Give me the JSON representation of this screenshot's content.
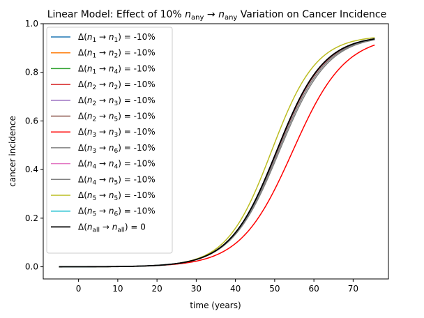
{
  "chart_data": {
    "type": "line",
    "title": {
      "prefix": "Linear Model: Effect of 10% ",
      "sym1": "n",
      "sub1": "any",
      "arrow": "→",
      "sym2": "n",
      "sub2": "any",
      "suffix": " Variation on Cancer Incidence"
    },
    "xlabel": "time (years)",
    "ylabel": "cancer incidence",
    "xlim": [
      -9,
      79
    ],
    "ylim": [
      -0.05,
      1.0
    ],
    "xticks": [
      0,
      10,
      20,
      30,
      40,
      50,
      60,
      70
    ],
    "yticks": [
      0.0,
      0.2,
      0.4,
      0.6,
      0.8,
      1.0
    ],
    "ytick_labels": [
      "0.0",
      "0.2",
      "0.4",
      "0.6",
      "0.8",
      "1.0"
    ],
    "legend_position": "upper-left",
    "series": [
      {
        "label": {
          "a": "1",
          "b": "1",
          "suffix": " = -10%"
        },
        "color": "#1f77b4",
        "x50": 50.6,
        "k": 0.166,
        "width": 1.5
      },
      {
        "label": {
          "a": "1",
          "b": "2",
          "suffix": " = -10%"
        },
        "color": "#ff7f0e",
        "x50": 50.5,
        "k": 0.167,
        "width": 1.5
      },
      {
        "label": {
          "a": "1",
          "b": "4",
          "suffix": " = -10%"
        },
        "color": "#2ca02c",
        "x50": 50.5,
        "k": 0.167,
        "width": 1.5
      },
      {
        "label": {
          "a": "2",
          "b": "2",
          "suffix": " = -10%"
        },
        "color": "#d62728",
        "x50": 50.6,
        "k": 0.166,
        "width": 1.5
      },
      {
        "label": {
          "a": "2",
          "b": "3",
          "suffix": " = -10%"
        },
        "color": "#9467bd",
        "x50": 50.5,
        "k": 0.167,
        "width": 1.5
      },
      {
        "label": {
          "a": "2",
          "b": "5",
          "suffix": " = -10%"
        },
        "color": "#8c564b",
        "x50": 50.5,
        "k": 0.167,
        "width": 1.5
      },
      {
        "label": {
          "a": "3",
          "b": "3",
          "suffix": " = -10%"
        },
        "color": "#ff0000",
        "x50": 54.6,
        "k": 0.15,
        "width": 1.5
      },
      {
        "label": {
          "a": "3",
          "b": "6",
          "suffix": " = -10%"
        },
        "color": "#7f7f7f",
        "x50": 51.2,
        "k": 0.162,
        "width": 1.5
      },
      {
        "label": {
          "a": "4",
          "b": "4",
          "suffix": " = -10%"
        },
        "color": "#e377c2",
        "x50": 50.5,
        "k": 0.167,
        "width": 1.5
      },
      {
        "label": {
          "a": "4",
          "b": "5",
          "suffix": " = -10%"
        },
        "color": "#808080",
        "x50": 50.9,
        "k": 0.164,
        "width": 1.5
      },
      {
        "label": {
          "a": "5",
          "b": "5",
          "suffix": " = -10%"
        },
        "color": "#bcbd22",
        "x50": 49.2,
        "k": 0.175,
        "width": 1.5
      },
      {
        "label": {
          "a": "5",
          "b": "6",
          "suffix": " = -10%"
        },
        "color": "#17becf",
        "x50": 50.5,
        "k": 0.167,
        "width": 1.5
      },
      {
        "label": {
          "a": "all",
          "b": "all",
          "suffix": " = 0"
        },
        "color": "#000000",
        "x50": 50.5,
        "k": 0.167,
        "width": 1.8
      }
    ],
    "x_range": [
      -5,
      75.5
    ],
    "y_min": 0.0,
    "y_max": 0.952
  }
}
